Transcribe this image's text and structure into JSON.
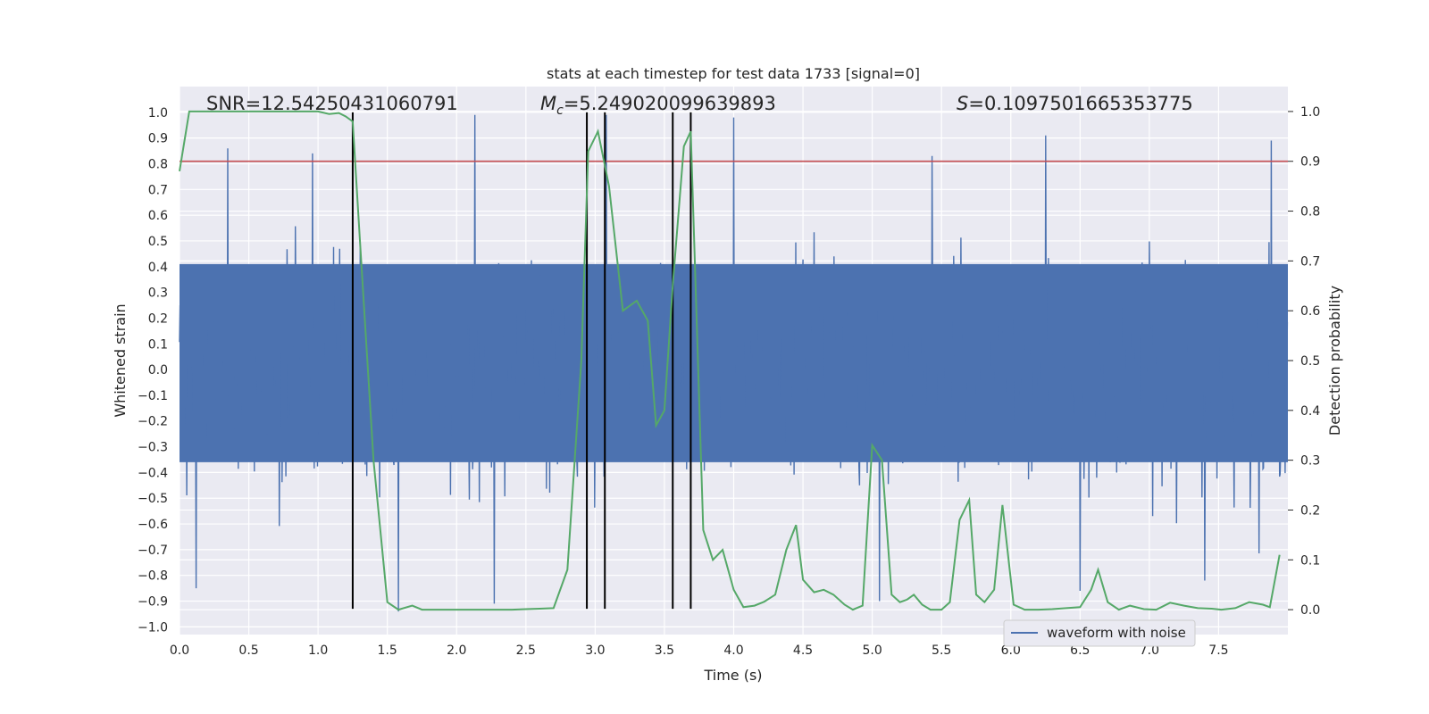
{
  "chart_data": {
    "type": "line",
    "title": "stats at each timestep for test data 1733 [signal=0]",
    "xlabel": "Time (s)",
    "ylabel": "Whitened strain",
    "ylabel_right": "Detection probability",
    "xlim": [
      0,
      8
    ],
    "ylim": [
      -1.03,
      1.1
    ],
    "ylim_right": [
      -0.05,
      1.05
    ],
    "x_ticks": [
      0.0,
      0.5,
      1.0,
      1.5,
      2.0,
      2.5,
      3.0,
      3.5,
      4.0,
      4.5,
      5.0,
      5.5,
      6.0,
      6.5,
      7.0,
      7.5
    ],
    "x_tick_labels": [
      "0.0",
      "0.5",
      "1.0",
      "1.5",
      "2.0",
      "2.5",
      "3.0",
      "3.5",
      "4.0",
      "4.5",
      "5.0",
      "5.5",
      "6.0",
      "6.5",
      "7.0",
      "7.5"
    ],
    "y_ticks": [
      -1.0,
      -0.9,
      -0.8,
      -0.7,
      -0.6,
      -0.5,
      -0.4,
      -0.3,
      -0.2,
      -0.1,
      0.0,
      0.1,
      0.2,
      0.3,
      0.4,
      0.5,
      0.6,
      0.7,
      0.8,
      0.9,
      1.0
    ],
    "y_tick_labels": [
      "−1.0",
      "−0.9",
      "−0.8",
      "−0.7",
      "−0.6",
      "−0.5",
      "−0.4",
      "−0.3",
      "−0.2",
      "−0.1",
      "0.0",
      "0.1",
      "0.2",
      "0.3",
      "0.4",
      "0.5",
      "0.6",
      "0.7",
      "0.8",
      "0.9",
      "1.0"
    ],
    "y_ticks_right": [
      0.0,
      0.1,
      0.2,
      0.3,
      0.4,
      0.5,
      0.6,
      0.7,
      0.8,
      0.9,
      1.0
    ],
    "y_tick_labels_right": [
      "0.0",
      "0.1",
      "0.2",
      "0.3",
      "0.4",
      "0.5",
      "0.6",
      "0.7",
      "0.8",
      "0.9",
      "1.0"
    ],
    "annotations": {
      "snr": "SNR=12.54250431060791",
      "mc_symbol": "M",
      "mc_sub": "c",
      "mc_value": "=5.249020099639893",
      "s_symbol": "S",
      "s_value": "=0.1097501665353775"
    },
    "threshold": 0.9,
    "vlines_x": [
      1.25,
      2.94,
      3.07,
      3.56,
      3.69
    ],
    "vlines_bottom": -0.93,
    "vlines_top": 1.0,
    "waveform": {
      "name": "waveform with noise",
      "duration": 8,
      "samples": 2000,
      "noise_std": 0.19,
      "peaks": [
        {
          "t": 0.35,
          "v": 0.86
        },
        {
          "t": 0.96,
          "v": 0.84
        },
        {
          "t": 2.13,
          "v": 0.99
        },
        {
          "t": 3.08,
          "v": 0.99
        },
        {
          "t": 4.0,
          "v": 0.98
        },
        {
          "t": 5.43,
          "v": 0.83
        },
        {
          "t": 6.25,
          "v": 0.91
        },
        {
          "t": 7.88,
          "v": 0.89
        },
        {
          "t": 0.12,
          "v": -0.85
        },
        {
          "t": 1.58,
          "v": -0.94
        },
        {
          "t": 2.27,
          "v": -0.91
        },
        {
          "t": 5.05,
          "v": -0.9
        },
        {
          "t": 6.5,
          "v": -0.86
        },
        {
          "t": 7.4,
          "v": -0.82
        }
      ]
    },
    "detection_probability": {
      "x": [
        0.0,
        0.07,
        0.2,
        0.4,
        0.6,
        0.8,
        1.0,
        1.08,
        1.15,
        1.2,
        1.25,
        1.3,
        1.4,
        1.5,
        1.58,
        1.68,
        1.75,
        1.85,
        2.0,
        2.2,
        2.4,
        2.5,
        2.6,
        2.7,
        2.8,
        2.9,
        2.95,
        3.02,
        3.1,
        3.2,
        3.3,
        3.38,
        3.44,
        3.5,
        3.56,
        3.64,
        3.69,
        3.78,
        3.85,
        3.92,
        4.0,
        4.07,
        4.15,
        4.22,
        4.3,
        4.38,
        4.45,
        4.5,
        4.58,
        4.65,
        4.72,
        4.8,
        4.86,
        4.93,
        5.0,
        5.07,
        5.14,
        5.2,
        5.25,
        5.3,
        5.36,
        5.42,
        5.5,
        5.56,
        5.63,
        5.7,
        5.75,
        5.81,
        5.88,
        5.94,
        6.02,
        6.1,
        6.2,
        6.3,
        6.4,
        6.5,
        6.58,
        6.63,
        6.7,
        6.78,
        6.86,
        6.96,
        7.05,
        7.15,
        7.25,
        7.35,
        7.45,
        7.52,
        7.62,
        7.72,
        7.82,
        7.87,
        7.94
      ],
      "y": [
        0.88,
        1.0,
        1.0,
        1.0,
        1.0,
        1.0,
        1.0,
        0.995,
        0.997,
        0.99,
        0.98,
        0.75,
        0.3,
        0.015,
        0.0,
        0.008,
        0.0,
        0.0,
        0.0,
        0.0,
        0.0,
        0.001,
        0.002,
        0.003,
        0.08,
        0.5,
        0.92,
        0.96,
        0.85,
        0.6,
        0.62,
        0.58,
        0.37,
        0.4,
        0.65,
        0.93,
        0.96,
        0.16,
        0.1,
        0.12,
        0.04,
        0.005,
        0.008,
        0.016,
        0.03,
        0.12,
        0.17,
        0.06,
        0.035,
        0.04,
        0.03,
        0.01,
        0.0,
        0.008,
        0.33,
        0.3,
        0.03,
        0.015,
        0.02,
        0.03,
        0.01,
        0.0,
        0.0,
        0.015,
        0.18,
        0.22,
        0.03,
        0.015,
        0.04,
        0.21,
        0.01,
        0.0,
        0.0,
        0.001,
        0.003,
        0.005,
        0.04,
        0.08,
        0.015,
        0.0,
        0.008,
        0.001,
        0.0,
        0.014,
        0.008,
        0.003,
        0.002,
        0.0,
        0.003,
        0.015,
        0.01,
        0.005,
        0.11
      ]
    }
  },
  "colors": {
    "axes_bg": "#eaeaf2",
    "grid": "#ffffff",
    "waveform": "#4c72b0",
    "probability": "#55a868",
    "threshold": "#c44e52",
    "vline": "#000000"
  }
}
